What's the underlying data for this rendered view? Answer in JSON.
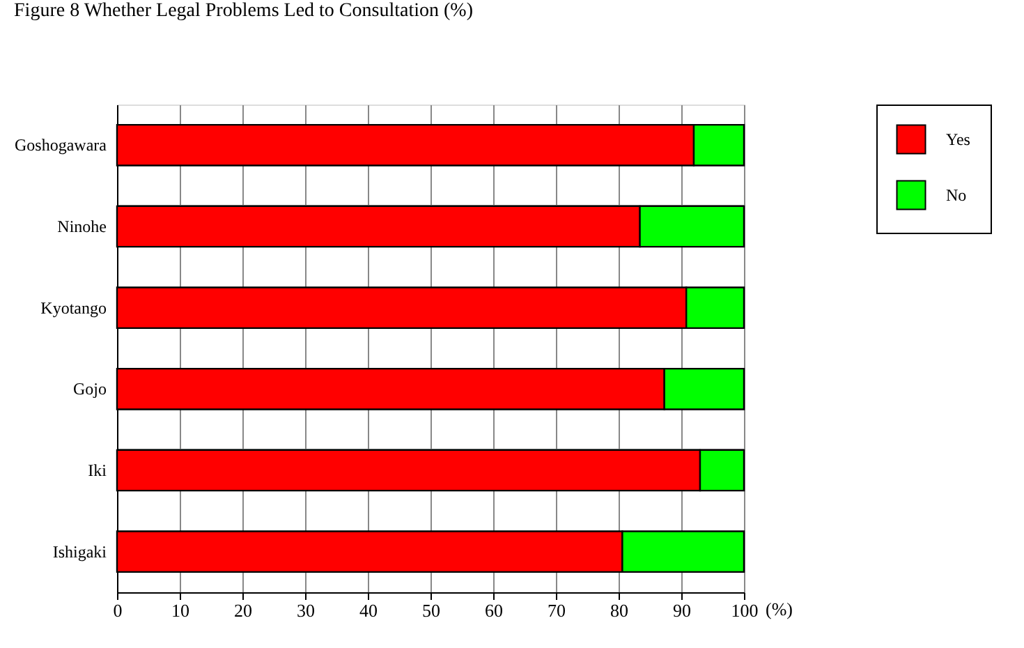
{
  "chart_data": {
    "type": "bar",
    "title": "Figure 8    Whether Legal Problems Led to Consultation (%)",
    "orientation": "horizontal",
    "stacked": true,
    "categories": [
      "Goshogawara",
      "Ninohe",
      "Kyotango",
      "Gojo",
      "Iki",
      "Ishigaki"
    ],
    "series": [
      {
        "name": "Yes",
        "color": "#ff0000",
        "values": [
          92.0,
          83.4,
          90.8,
          87.3,
          93.0,
          80.6
        ]
      },
      {
        "name": "No",
        "color": "#00ff00",
        "values": [
          8.0,
          16.6,
          9.2,
          12.7,
          7.0,
          19.4
        ]
      }
    ],
    "xlabel": "(%)",
    "xlim": [
      0,
      100
    ],
    "xticks": [
      0,
      10,
      20,
      30,
      40,
      50,
      60,
      70,
      80,
      90,
      100
    ],
    "grid": true,
    "legend": "top right"
  }
}
